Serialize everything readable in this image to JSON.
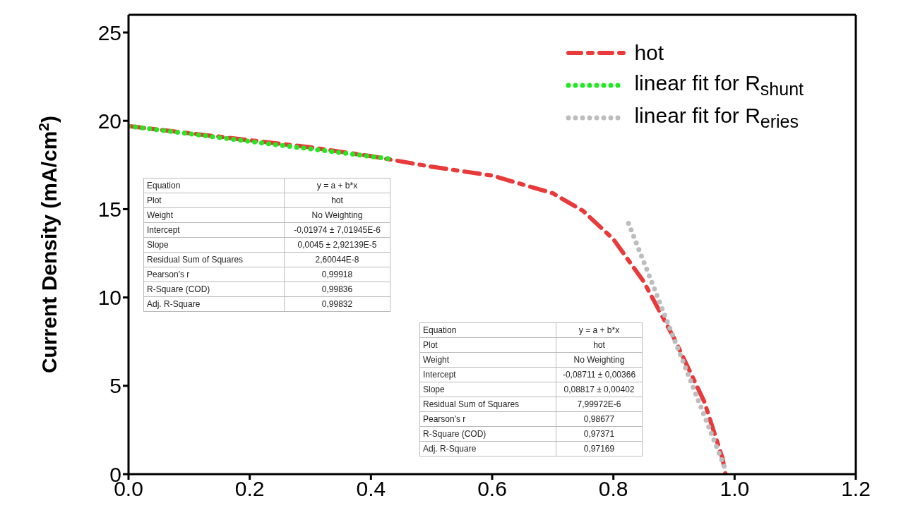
{
  "chart_data": {
    "type": "line",
    "ylabel": "Current Density (mA/cm$^{2}$)",
    "xlim": [
      0,
      1.2
    ],
    "xticks": [
      {
        "value": 0,
        "label": "0.0"
      },
      {
        "value": 0.2,
        "label": "0.2"
      },
      {
        "value": 0.4,
        "label": "0.4"
      },
      {
        "value": 0.6,
        "label": "0.6"
      },
      {
        "value": 0.8,
        "label": "0.8"
      },
      {
        "value": 1,
        "label": "1.0"
      },
      {
        "value": 1.2,
        "label": "1.2"
      }
    ],
    "ylim": [
      0,
      26
    ],
    "yticks": [
      0,
      5,
      10,
      15,
      20,
      25
    ],
    "grid": false,
    "legend": "top right",
    "marker": "none",
    "series": [
      {
        "name": "hot",
        "color": "#e8393b",
        "line_style": "dashed",
        "x": [
          0,
          0.1,
          0.2,
          0.3,
          0.4,
          0.5,
          0.6,
          0.7,
          0.75,
          0.8,
          0.85,
          0.9,
          0.95,
          0.98,
          0.985
        ],
        "values": [
          19.7,
          19.3,
          18.9,
          18.5,
          18.0,
          17.4,
          16.9,
          15.9,
          14.9,
          13.3,
          10.9,
          7.7,
          4.1,
          0.9,
          0
        ]
      },
      {
        "name": "linear fit for R$_{shunt}$",
        "color": "#22e822",
        "line_style": "dotted",
        "x": [
          0,
          0.43
        ],
        "values": [
          19.7,
          17.85
        ]
      },
      {
        "name": "linear fit for R$_{eries}$",
        "color": "#bdbdbd",
        "line_style": "dotted",
        "x": [
          0.825,
          0.983
        ],
        "values": [
          14.2,
          0.44
        ]
      }
    ],
    "annotations": [
      "Equation",
      "y = a + b*x",
      "Plot",
      "hot",
      "Weight",
      "No Weighting",
      "Intercept",
      "-0,01974 ± 7,01945E-6",
      "Slope",
      "0,0045 ± 2,92139E-5",
      "Residual Sum of Squares",
      "2,60044E-8",
      "Pearson's r",
      "0,99918",
      "R-Square (COD)",
      "0,99836",
      "Adj. R-Square",
      "0,99832",
      "Equation",
      "y = a + b*x",
      "Plot",
      "hot",
      "Weight",
      "No Weighting",
      "Intercept",
      "-0,08711 ± 0,00366",
      "Slope",
      "0,08817 ± 0,00402",
      "Residual Sum of Squares",
      "7,99972E-6",
      "Pearson's r",
      "0,98677",
      "R-Square (COD)",
      "0,97371",
      "Adj. R-Square",
      "0,97169"
    ]
  }
}
